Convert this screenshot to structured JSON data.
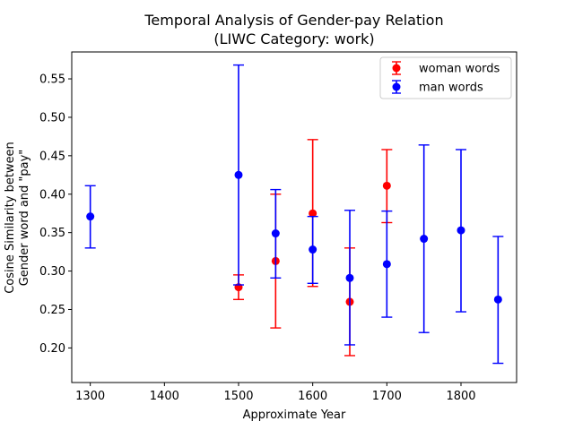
{
  "chart_data": {
    "type": "scatter",
    "title": "Temporal Analysis of Gender-pay Relation",
    "subtitle": "(LIWC Category: work)",
    "xlabel": "Approximate Year",
    "ylabel_line1": "Cosine Similarity between",
    "ylabel_line2": "Gender word and \"pay\"",
    "xlim": [
      1275,
      1875
    ],
    "ylim": [
      0.155,
      0.585
    ],
    "xticks": [
      1300,
      1400,
      1500,
      1600,
      1700,
      1800
    ],
    "yticks": [
      0.2,
      0.25,
      0.3,
      0.35,
      0.4,
      0.45,
      0.5,
      0.55
    ],
    "grid": false,
    "legend_position": "top-right",
    "series": [
      {
        "name": "woman words",
        "color": "#ff0000",
        "points": [
          {
            "x": 1500,
            "y": 0.279,
            "low": 0.263,
            "high": 0.295
          },
          {
            "x": 1550,
            "y": 0.313,
            "low": 0.226,
            "high": 0.4
          },
          {
            "x": 1600,
            "y": 0.375,
            "low": 0.28,
            "high": 0.471
          },
          {
            "x": 1650,
            "y": 0.26,
            "low": 0.19,
            "high": 0.33
          },
          {
            "x": 1700,
            "y": 0.411,
            "low": 0.363,
            "high": 0.458
          }
        ]
      },
      {
        "name": "man words",
        "color": "#0000ff",
        "points": [
          {
            "x": 1300,
            "y": 0.371,
            "low": 0.33,
            "high": 0.411
          },
          {
            "x": 1500,
            "y": 0.425,
            "low": 0.282,
            "high": 0.568
          },
          {
            "x": 1550,
            "y": 0.349,
            "low": 0.291,
            "high": 0.406
          },
          {
            "x": 1600,
            "y": 0.328,
            "low": 0.284,
            "high": 0.371
          },
          {
            "x": 1650,
            "y": 0.291,
            "low": 0.204,
            "high": 0.379
          },
          {
            "x": 1700,
            "y": 0.309,
            "low": 0.24,
            "high": 0.378
          },
          {
            "x": 1750,
            "y": 0.342,
            "low": 0.22,
            "high": 0.464
          },
          {
            "x": 1800,
            "y": 0.353,
            "low": 0.247,
            "high": 0.458
          },
          {
            "x": 1850,
            "y": 0.263,
            "low": 0.18,
            "high": 0.345
          }
        ]
      }
    ]
  }
}
